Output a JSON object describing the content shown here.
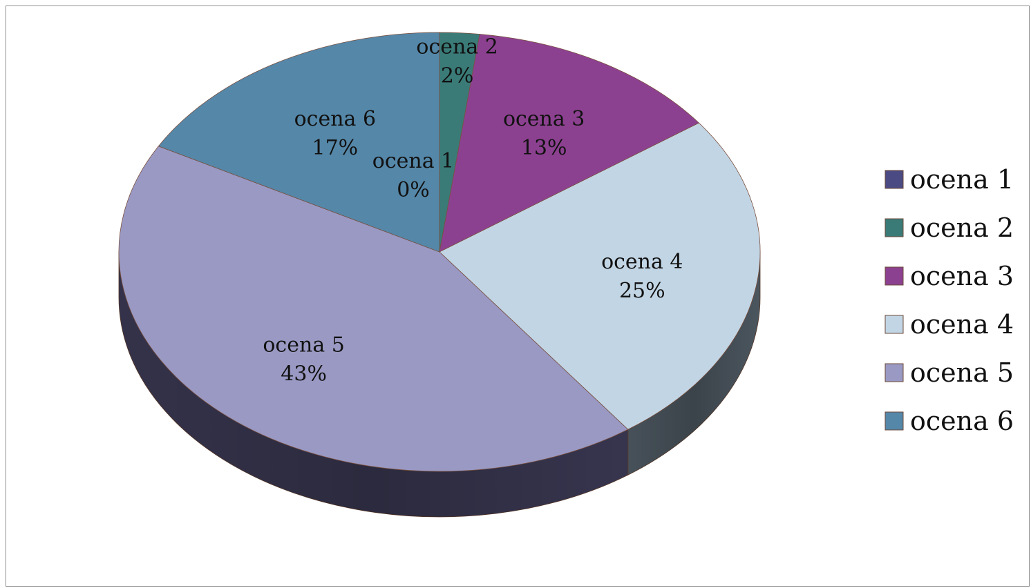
{
  "chart_data": {
    "type": "pie",
    "style": "3d",
    "categories": [
      "ocena 1",
      "ocena 2",
      "ocena 3",
      "ocena 4",
      "ocena 5",
      "ocena 6"
    ],
    "values": [
      0,
      2,
      13,
      25,
      43,
      17
    ],
    "value_labels": [
      "0%",
      "2%",
      "13%",
      "25%",
      "43%",
      "17%"
    ],
    "colors": [
      "#4b4a82",
      "#3a7b78",
      "#8c4190",
      "#c2d5e4",
      "#9999c3",
      "#5587a8"
    ],
    "side_colors": [
      "#2e2d52",
      "#244d4b",
      "#562858",
      "#4f5a63",
      "#3a3852",
      "#34536a"
    ],
    "legend_position": "right",
    "title": ""
  }
}
